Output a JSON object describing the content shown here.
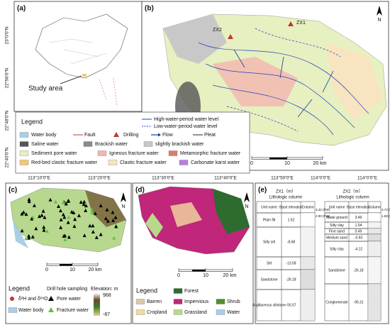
{
  "axes": {
    "lat": [
      "23°0'0\"N",
      "22°56'0\"N",
      "22°48'0\"N",
      "22°40'0\"N"
    ],
    "lon": [
      "113°10'0\"E",
      "113°20'0\"E",
      "113°30'0\"E",
      "113°40'0\"E",
      "113°50'0\"E",
      "114°0'0\"E",
      "114°0'0\"E"
    ]
  },
  "panel_a": {
    "label": "(a)",
    "study_area": "Study area"
  },
  "panel_b": {
    "label": "(b)",
    "north": "N",
    "drills": [
      "ZX1",
      "ZX2"
    ],
    "scale": [
      0,
      10,
      "20 km"
    ],
    "legend": {
      "title": "Legend",
      "lines": [
        {
          "name": "High-water-period water level",
          "color": "#2040c0",
          "kind": "line"
        },
        {
          "name": "Low-water-period water level",
          "color": "#2040c0",
          "kind": "dash"
        }
      ],
      "items": [
        {
          "name": "Water body",
          "color": "#a9cfe8",
          "kind": "swatch"
        },
        {
          "name": "Fault",
          "color": "#c0392b",
          "kind": "line"
        },
        {
          "name": "Drilling",
          "color": "#c0392b",
          "kind": "triangle"
        },
        {
          "name": "Flow",
          "color": "#1a3a9a",
          "kind": "arrow"
        },
        {
          "name": "Pleat",
          "color": "#222222",
          "kind": "line"
        },
        {
          "name": "Saline water",
          "color": "#555555",
          "kind": "swatch"
        },
        {
          "name": "Brackish water",
          "color": "#8a8a8a",
          "kind": "swatch"
        },
        {
          "name": "slightly brackish water",
          "color": "#c8c8c8",
          "kind": "swatch"
        },
        {
          "name": "Sediment pore water",
          "color": "#e6f0c0",
          "kind": "swatch"
        },
        {
          "name": "Igneous fracture water",
          "color": "#f4b6b0",
          "kind": "swatch"
        },
        {
          "name": "Metamorphic fracture water",
          "color": "#e07a6e",
          "kind": "swatch"
        },
        {
          "name": "Red-bed clastic fracture water",
          "color": "#f7c870",
          "kind": "swatch"
        },
        {
          "name": "Clastic fracture water",
          "color": "#f8e4c0",
          "kind": "swatch"
        },
        {
          "name": "Carbonate karst water",
          "color": "#b77ee0",
          "kind": "swatch"
        }
      ]
    }
  },
  "panel_c": {
    "label": "(c)",
    "north": "N",
    "scale": [
      0,
      10,
      "20 km"
    ],
    "legend": {
      "title": "Legend",
      "sampling": "Drill hole sampling",
      "elevation": "Elevation: m",
      "elev_max": 968,
      "elev_min": -87,
      "items": [
        {
          "name": "δ²H and δ¹⁸O",
          "color": "#c0392b",
          "kind": "circle"
        },
        {
          "name": "Water body",
          "color": "#a9cfe8",
          "kind": "swatch"
        },
        {
          "name": "Pore water",
          "color": "#000000",
          "kind": "triangle"
        },
        {
          "name": "Fracture water",
          "color": "#5cc43c",
          "kind": "triangle"
        }
      ]
    }
  },
  "panel_d": {
    "label": "(d)",
    "north": "N",
    "scale": [
      0,
      10,
      "20 km"
    ],
    "legend": {
      "title": "Legend",
      "items": [
        {
          "name": "Forest",
          "color": "#2e6b2e"
        },
        {
          "name": "Barren",
          "color": "#d9c9a8"
        },
        {
          "name": "Impervious",
          "color": "#c0267a"
        },
        {
          "name": "Shrub",
          "color": "#4f8f2a"
        },
        {
          "name": "Cropland",
          "color": "#f0dca0"
        },
        {
          "name": "Grassland",
          "color": "#b9d98a"
        },
        {
          "name": "Water",
          "color": "#a9cfe8"
        }
      ]
    }
  },
  "panel_e": {
    "label": "(e)",
    "boreholes": [
      {
        "title": "ZX1（m）",
        "subtitle": "Lithologic column",
        "headers": [
          "Unit name",
          "Base elevation",
          "Column"
        ],
        "levels": [
          "3.42 (PW)",
          "2.90 (FW)"
        ],
        "rows": [
          [
            "Plain fill",
            1.52
          ],
          [
            "Silty silt",
            -8.68
          ],
          [
            "Silt",
            -13.58
          ],
          [
            "Sandstone",
            -26.18
          ],
          [
            "Argillaceous siltstone",
            -55.57
          ]
        ]
      },
      {
        "title": "ZX2（m）",
        "subtitle": "Lithologic column",
        "headers": [
          "Unit name",
          "Base elevation",
          "Column"
        ],
        "levels": [
          "3.72 (PW)",
          "1.59 (FW)"
        ],
        "rows": [
          [
            "Made ground",
            3.49
          ],
          [
            "Silty clay",
            1.04
          ],
          [
            "Fine sand",
            0.49
          ],
          [
            "Medium sand",
            -0.93
          ],
          [
            "Silty clay",
            -4.12
          ],
          [
            "Sandstone",
            -26.18
          ],
          [
            "Conglomerate",
            -95.31
          ]
        ]
      }
    ]
  }
}
